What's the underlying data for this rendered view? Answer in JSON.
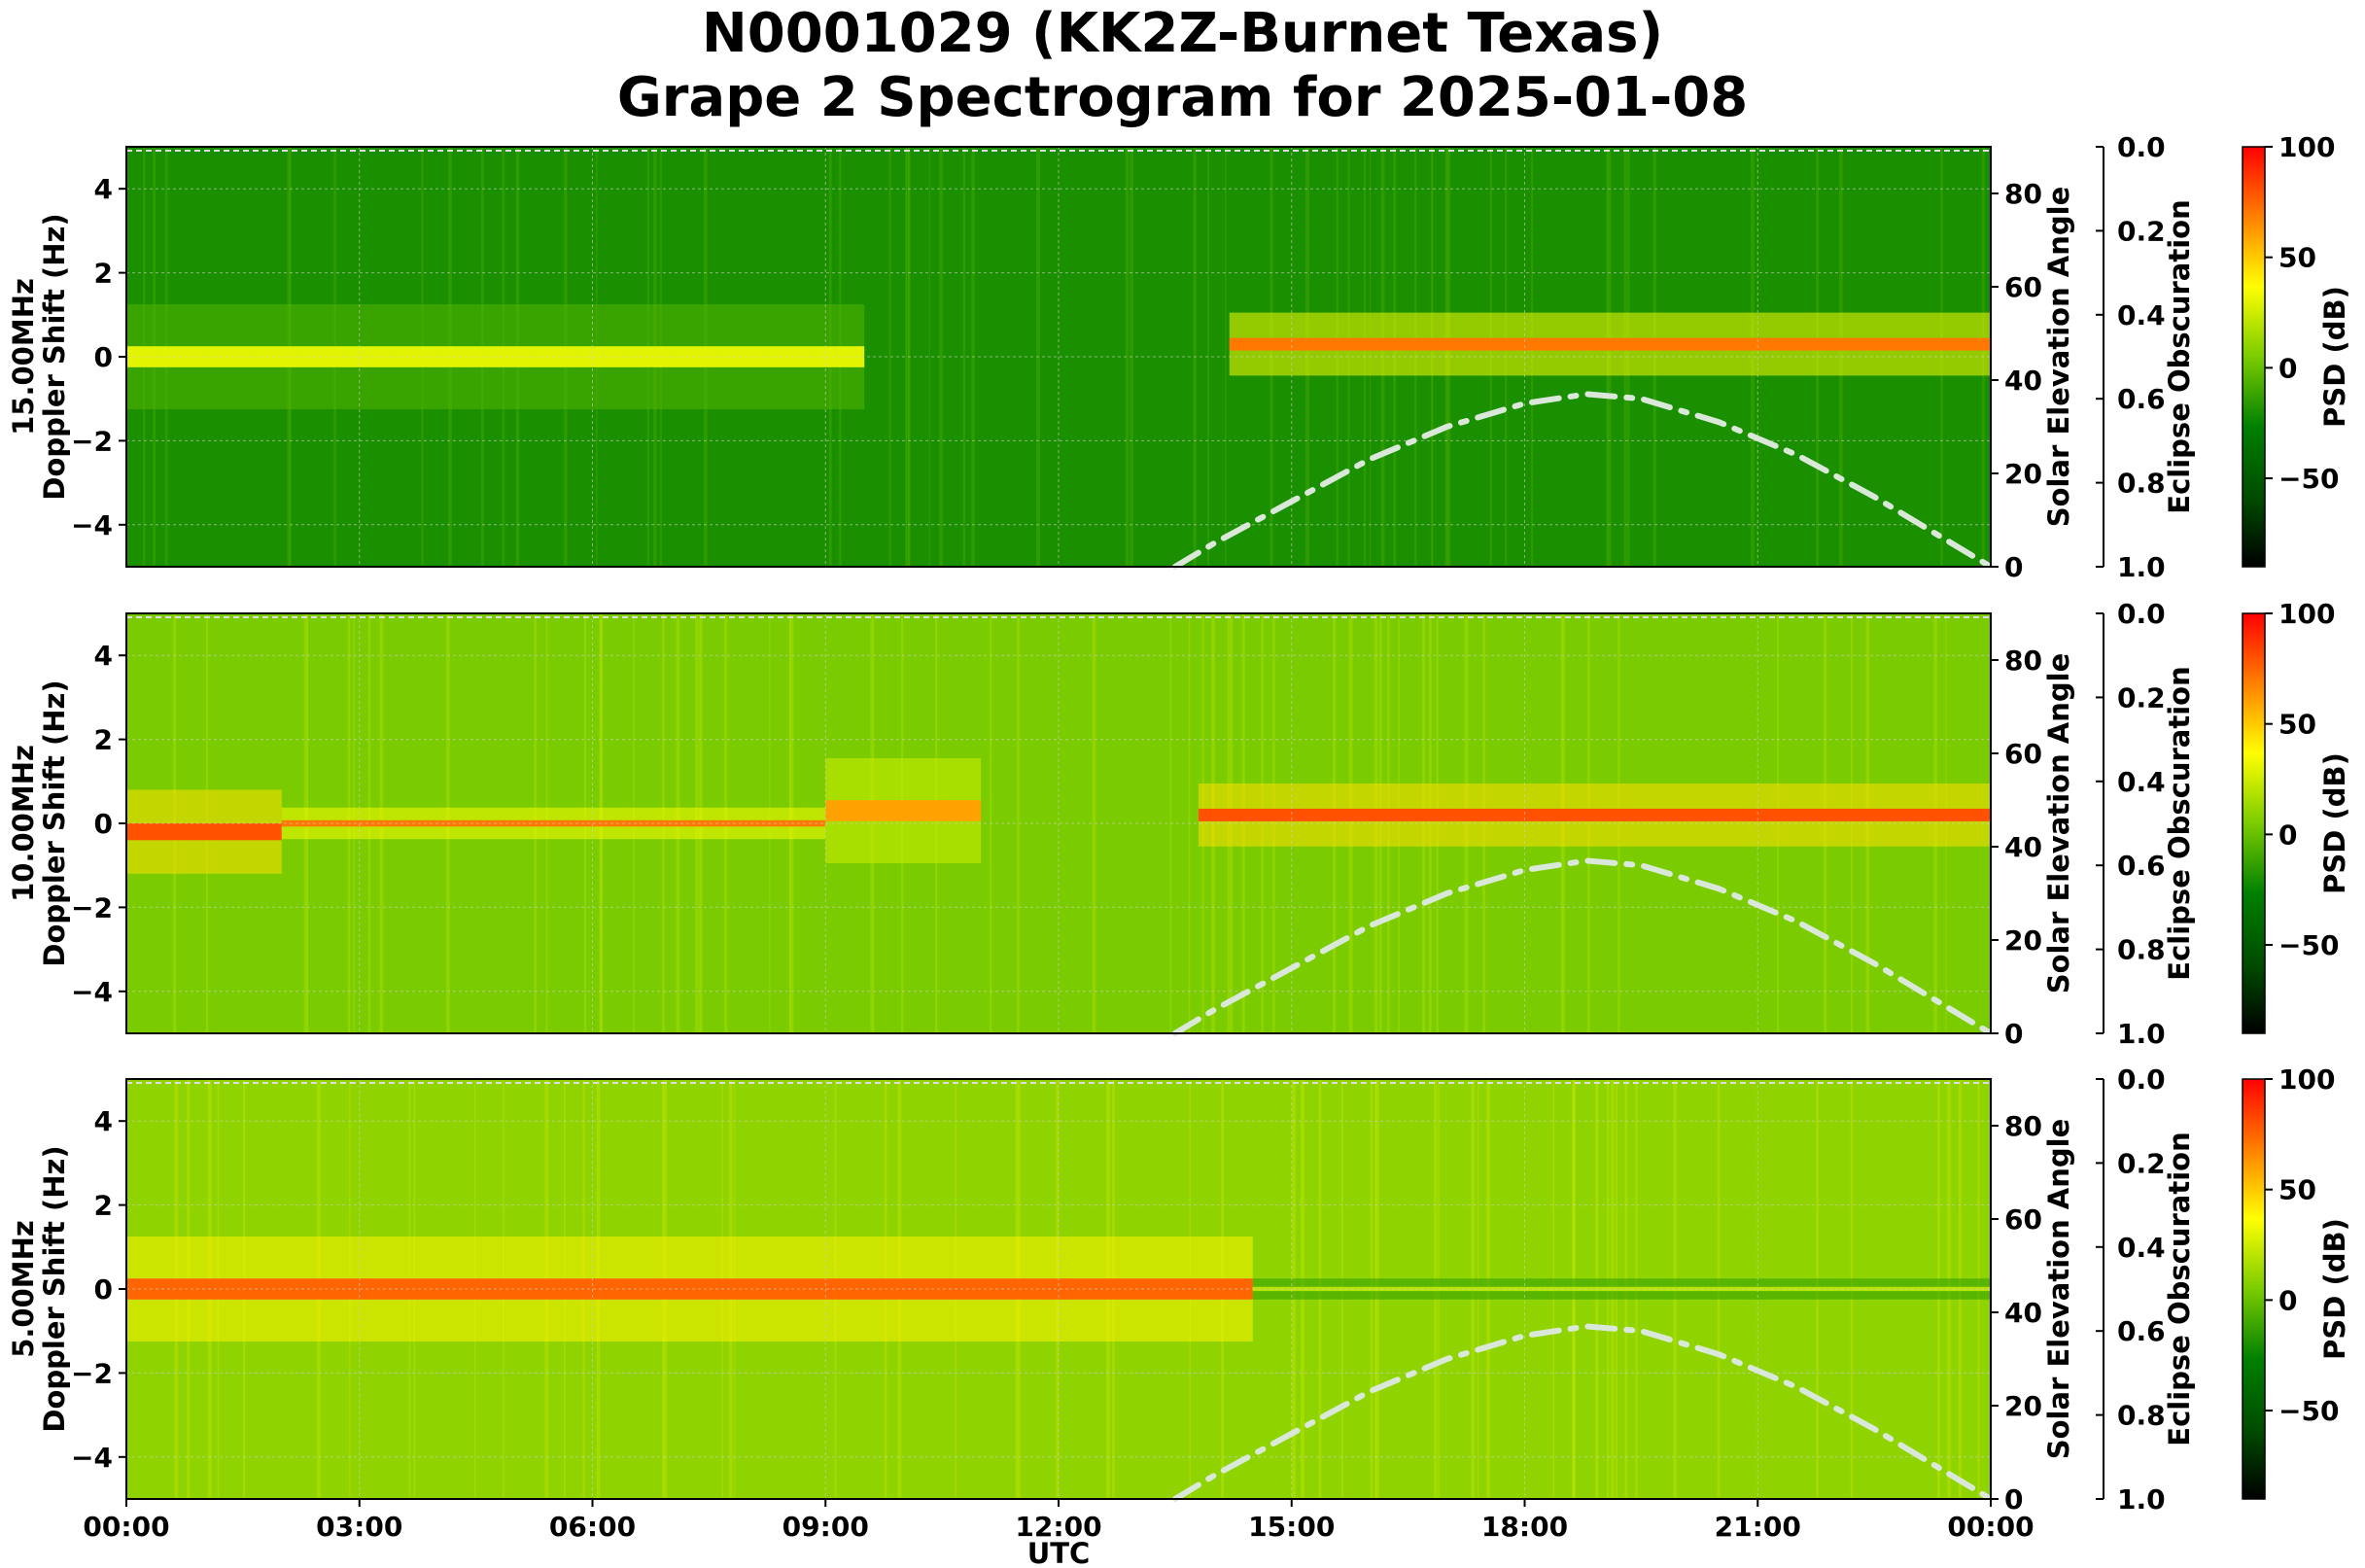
{
  "chart_data": {
    "type": "heatmap",
    "title": [
      "N0001029 (KK2Z-Burnet Texas)",
      "Grape 2 Spectrogram for 2025-01-08"
    ],
    "xlabel": "UTC",
    "x_ticks": [
      "00:00",
      "03:00",
      "06:00",
      "09:00",
      "12:00",
      "15:00",
      "18:00",
      "21:00",
      "00:00"
    ],
    "x_range_hours": [
      0,
      24
    ],
    "y_range_hz": [
      -5,
      5
    ],
    "y_ticks": [
      "4",
      "2",
      "0",
      "−2",
      "−4"
    ],
    "y_right_label": "Solar Elevation Angle",
    "y_right_ticks": [
      "80",
      "60",
      "40",
      "20",
      "0"
    ],
    "y_right_range": [
      0,
      90
    ],
    "eclipse_label": "Eclipse Obscuration",
    "eclipse_ticks": [
      "0.0",
      "0.2",
      "0.4",
      "0.6",
      "0.8",
      "1.0"
    ],
    "colorbar_label": "PSD (dB)",
    "colorbar_ticks": [
      "100",
      "50",
      "0",
      "−50"
    ],
    "colorbar_range": [
      -90,
      100
    ],
    "colormap": [
      "#000000",
      "#004d00",
      "#008000",
      "#7acc00",
      "#ffff00",
      "#ff8000",
      "#ff0000"
    ],
    "grid": true,
    "solar_elevation": {
      "style": "dash-dot",
      "color": "#d9e8d9",
      "hours": [
        13.5,
        14.0,
        15.0,
        16.0,
        17.0,
        18.0,
        18.8,
        19.5,
        20.5,
        21.5,
        22.5,
        23.5,
        24.0
      ],
      "degrees": [
        0,
        5,
        14,
        23,
        30,
        35,
        37,
        36,
        31,
        24,
        15,
        5,
        0
      ]
    },
    "panels": [
      {
        "ylabel": [
          "15.00MHz",
          "Doppler Shift (Hz)"
        ],
        "background_db": -20,
        "carrier": [
          {
            "start_h": 0,
            "end_h": 9.5,
            "db": 30,
            "offset_hz": 0.0,
            "width_hz": 0.5
          },
          {
            "start_h": 14.2,
            "end_h": 24,
            "db": 70,
            "offset_hz": 0.3,
            "width_hz": 0.3
          }
        ]
      },
      {
        "ylabel": [
          "10.00MHz",
          "Doppler Shift (Hz)"
        ],
        "background_db": 5,
        "carrier": [
          {
            "start_h": 0,
            "end_h": 2.0,
            "db": 80,
            "offset_hz": -0.2,
            "width_hz": 0.4
          },
          {
            "start_h": 2.0,
            "end_h": 9.0,
            "db": 70,
            "offset_hz": 0.0,
            "width_hz": 0.15
          },
          {
            "start_h": 9.0,
            "end_h": 11.0,
            "db": 60,
            "offset_hz": 0.3,
            "width_hz": 0.5
          },
          {
            "start_h": 13.8,
            "end_h": 24,
            "db": 80,
            "offset_hz": 0.2,
            "width_hz": 0.3
          }
        ]
      },
      {
        "ylabel": [
          "5.00MHz",
          "Doppler Shift (Hz)"
        ],
        "background_db": 10,
        "carrier": [
          {
            "start_h": 0,
            "end_h": 14.5,
            "db": 75,
            "offset_hz": 0.0,
            "width_hz": 0.5
          },
          {
            "start_h": 14.5,
            "end_h": 24,
            "db": 20,
            "offset_hz": 0.0,
            "width_hz": 0.1
          }
        ]
      }
    ]
  }
}
